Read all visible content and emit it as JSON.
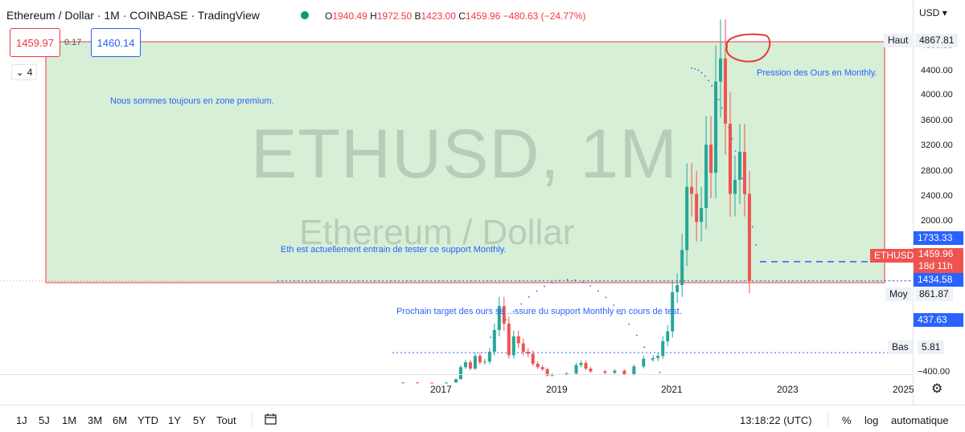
{
  "header": {
    "title": "Ethereum / Dollar · 1M · COINBASE · TradingView",
    "ohlc": {
      "open_label": "O",
      "open": "1940.49",
      "high_label": "H",
      "high": "1972.50",
      "low_label": "B",
      "low": "1423.00",
      "close_label": "C",
      "close": "1459.96",
      "change": "−480.63 (−24.77%)"
    },
    "sell_price": "1459.97",
    "spread": "0.17",
    "buy_price": "1460.14",
    "indicator_count": "4",
    "currency": "USD"
  },
  "watermark": {
    "symbol": "ETHUSD, 1M",
    "name": "Ethereum / Dollar"
  },
  "annotations": {
    "premium": "Nous sommes toujours en zone premium.",
    "bears": "Pression des Ours en Monthly.",
    "support_test": "Eth est actuellement entrain de tester ce support Monthly.",
    "next_target": "Prochain target des ours se ...ssure du support Monthly en cours de test."
  },
  "price_axis": {
    "labels": [
      "4800.00",
      "4400.00",
      "4000.00",
      "3600.00",
      "3200.00",
      "2800.00",
      "2400.00",
      "2000.00",
      "−400.00"
    ],
    "tags": {
      "high_label": "Haut",
      "high_value": "4867.81",
      "level_1733": "1733.33",
      "symbol": "ETHUSD",
      "current": "1459.96",
      "countdown": "18d 11h",
      "level_1434": "1434.58",
      "mid_label": "Moy",
      "mid_value": "861.87",
      "level_437": "437.63",
      "low_label": "Bas",
      "low_value": "5.81"
    }
  },
  "time_axis": {
    "labels": [
      "2017",
      "2019",
      "2021",
      "2023",
      "2025"
    ]
  },
  "bottom_bar": {
    "timeframes": [
      "1J",
      "5J",
      "1M",
      "3M",
      "6M",
      "YTD",
      "1Y",
      "5Y",
      "Tout"
    ],
    "clock": "13:18:22 (UTC)",
    "percent": "%",
    "log": "log",
    "auto": "automatique"
  },
  "colors": {
    "up": "#26a69a",
    "down": "#ef5350",
    "zone_fill": "#d6efd6",
    "zone_border": "#f23645",
    "accent": "#2962ff"
  },
  "chart_data": {
    "type": "candlestick",
    "title": "Ethereum / Dollar",
    "yscale": "linear",
    "ylim": [
      -400,
      4900
    ],
    "zone": {
      "from": 1434.58,
      "to": 4867.81
    },
    "levels": [
      1733.33,
      1459.96,
      437.63
    ],
    "x": [
      "2016-05",
      "2016-08",
      "2016-11",
      "2017-02",
      "2017-04",
      "2017-05",
      "2017-06",
      "2017-07",
      "2017-08",
      "2017-09",
      "2017-10",
      "2017-11",
      "2017-12",
      "2018-01",
      "2018-02",
      "2018-03",
      "2018-04",
      "2018-05",
      "2018-06",
      "2018-07",
      "2018-08",
      "2018-09",
      "2018-10",
      "2018-11",
      "2018-12",
      "2019-03",
      "2019-05",
      "2019-06",
      "2019-07",
      "2019-08",
      "2019-11",
      "2020-01",
      "2020-03",
      "2020-05",
      "2020-07",
      "2020-09",
      "2020-10",
      "2020-11",
      "2020-12",
      "2021-01",
      "2021-02",
      "2021-03",
      "2021-04",
      "2021-05",
      "2021-06",
      "2021-07",
      "2021-08",
      "2021-09",
      "2021-10",
      "2021-11",
      "2021-12",
      "2022-01",
      "2022-02",
      "2022-03",
      "2022-04",
      "2022-05"
    ],
    "values": [
      12,
      10,
      9,
      11,
      60,
      230,
      300,
      210,
      390,
      300,
      310,
      450,
      760,
      1100,
      850,
      400,
      670,
      570,
      450,
      420,
      280,
      230,
      200,
      110,
      130,
      140,
      260,
      290,
      210,
      170,
      150,
      180,
      130,
      240,
      350,
      360,
      390,
      600,
      740,
      1300,
      1400,
      1900,
      2800,
      2700,
      2300,
      2500,
      3400,
      3000,
      4300,
      4630,
      3700,
      2700,
      2900,
      3300,
      2700,
      1460
    ]
  }
}
